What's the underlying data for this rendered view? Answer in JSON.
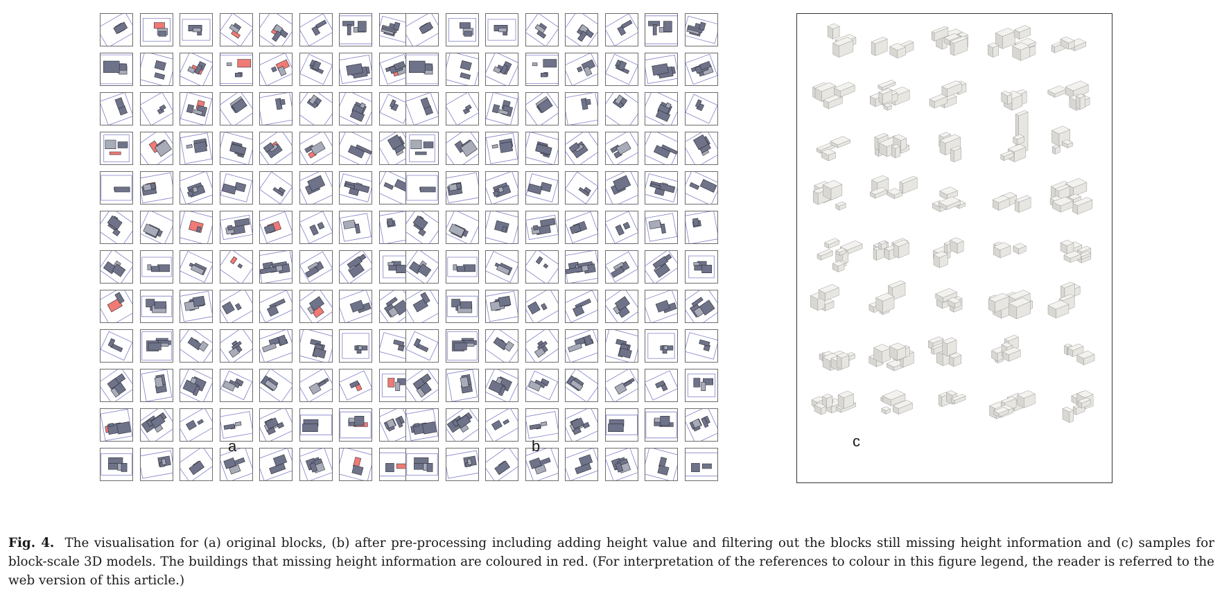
{
  "figure": {
    "panel_labels": {
      "a": "a",
      "b": "b",
      "c": "c"
    },
    "grid": {
      "columns": 8,
      "rows": 12
    },
    "colors": {
      "tile_border": "#6b6b6b",
      "block_boundary": "#7f7fc8",
      "building": "#6e7389",
      "building_light": "#a8abb8",
      "missing_height": "#f07a74",
      "model_face": "#f4f2ee",
      "model_edge": "#9a9a9a"
    },
    "tiles_a": [
      [
        "n",
        "r",
        "n",
        "r",
        "r",
        "n",
        "n",
        "n"
      ],
      [
        "n",
        "n",
        "r",
        "r",
        "r",
        "n",
        "n",
        "r"
      ],
      [
        "n",
        "n",
        "r",
        "n",
        "n",
        "n",
        "n",
        "n"
      ],
      [
        "r",
        "r",
        "n",
        "n",
        "r",
        "r",
        "n",
        "n"
      ],
      [
        "n",
        "r",
        "n",
        "n",
        "n",
        "n",
        "n",
        "n"
      ],
      [
        "n",
        "n",
        "r",
        "n",
        "r",
        "n",
        "n",
        "n"
      ],
      [
        "n",
        "n",
        "n",
        "r",
        "n",
        "n",
        "n",
        "n"
      ],
      [
        "r",
        "n",
        "n",
        "n",
        "n",
        "r",
        "n",
        "n"
      ],
      [
        "n",
        "n",
        "n",
        "n",
        "n",
        "n",
        "n",
        "n"
      ],
      [
        "n",
        "n",
        "n",
        "n",
        "n",
        "n",
        "r",
        "r"
      ],
      [
        "r",
        "n",
        "n",
        "r",
        "n",
        "n",
        "r",
        "n"
      ],
      [
        "n",
        "n",
        "n",
        "n",
        "n",
        "n",
        "r",
        "r"
      ]
    ],
    "model_rows": [
      5,
      5,
      5,
      5,
      5,
      5,
      5,
      5
    ]
  },
  "caption": {
    "label": "Fig. 4.",
    "text": "The visualisation for (a) original blocks, (b) after pre-processing including adding height value and filtering out the blocks still missing height information and (c) samples for block-scale 3D models. The buildings that missing height information are coloured in red. (For interpretation of the references to colour in this figure legend, the reader is referred to the web version of this article.)"
  }
}
